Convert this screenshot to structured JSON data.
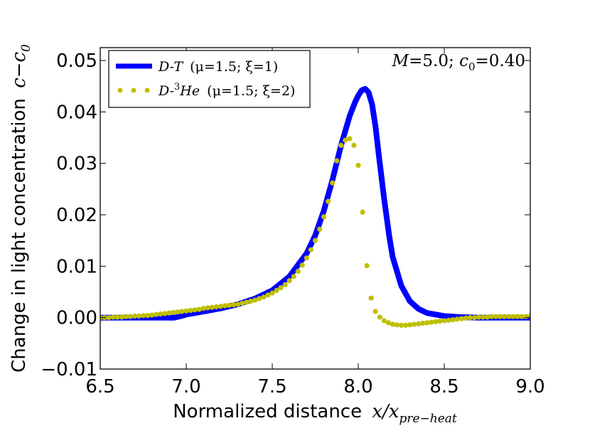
{
  "chart_data": {
    "type": "line",
    "title": "",
    "xlabel": "Normalized distance x/x_pre-heat",
    "ylabel": "Change in light concentration c−c_0",
    "xlim": [
      6.5,
      9.0
    ],
    "ylim": [
      -0.01,
      0.0525
    ],
    "grid": false,
    "legend_position": "top-left",
    "x_ticks": [
      6.5,
      7.0,
      7.5,
      8.0,
      8.5,
      9.0
    ],
    "x_tick_labels": [
      "6.5",
      "7.0",
      "7.5",
      "8.0",
      "8.5",
      "9.0"
    ],
    "y_ticks": [
      -0.01,
      0.0,
      0.01,
      0.02,
      0.03,
      0.04,
      0.05
    ],
    "y_tick_labels": [
      "−0.01",
      "0.00",
      "0.01",
      "0.02",
      "0.03",
      "0.04",
      "0.05"
    ],
    "annotation": "M=5.0; c0 =0.40",
    "series": [
      {
        "name": "D-T (μ=1.5; ξ=1)",
        "style": "line",
        "color": "#0000ff",
        "x": [
          6.5,
          6.8,
          6.9,
          6.93,
          6.97,
          7.0,
          7.1,
          7.2,
          7.3,
          7.4,
          7.5,
          7.6,
          7.7,
          7.75,
          7.8,
          7.85,
          7.9,
          7.95,
          7.98,
          8.0,
          8.02,
          8.04,
          8.06,
          8.08,
          8.1,
          8.12,
          8.15,
          8.18,
          8.2,
          8.25,
          8.3,
          8.35,
          8.4,
          8.5,
          8.6,
          8.7,
          9.0
        ],
        "y": [
          0.0,
          0.0,
          0.0,
          0.0,
          0.0003,
          0.0006,
          0.0012,
          0.0018,
          0.0026,
          0.0037,
          0.0053,
          0.008,
          0.0125,
          0.016,
          0.0208,
          0.0268,
          0.0335,
          0.0392,
          0.0418,
          0.0432,
          0.0442,
          0.0445,
          0.0438,
          0.0415,
          0.0372,
          0.0315,
          0.0232,
          0.0158,
          0.0118,
          0.0062,
          0.0032,
          0.0017,
          0.0009,
          0.0003,
          0.0001,
          0.0,
          0.0
        ]
      },
      {
        "name": "D-3He (μ=1.5; ξ=2)",
        "style": "dots",
        "color": "#bfbf00",
        "x": [
          6.5,
          6.525,
          6.55,
          6.575,
          6.6,
          6.625,
          6.65,
          6.675,
          6.7,
          6.725,
          6.75,
          6.775,
          6.8,
          6.825,
          6.85,
          6.875,
          6.9,
          6.925,
          6.95,
          6.975,
          7.0,
          7.025,
          7.05,
          7.075,
          7.1,
          7.125,
          7.15,
          7.175,
          7.2,
          7.225,
          7.25,
          7.275,
          7.3,
          7.325,
          7.35,
          7.375,
          7.4,
          7.425,
          7.45,
          7.475,
          7.5,
          7.525,
          7.55,
          7.575,
          7.6,
          7.625,
          7.65,
          7.675,
          7.7,
          7.725,
          7.75,
          7.775,
          7.8,
          7.825,
          7.85,
          7.875,
          7.9,
          7.925,
          7.95,
          7.975,
          8.0,
          8.025,
          8.05,
          8.075,
          8.1,
          8.125,
          8.15,
          8.175,
          8.2,
          8.225,
          8.25,
          8.275,
          8.3,
          8.325,
          8.35,
          8.375,
          8.4,
          8.425,
          8.45,
          8.475,
          8.5,
          8.525,
          8.55,
          8.575,
          8.6,
          8.625,
          8.65,
          8.675,
          8.7,
          8.725,
          8.75,
          8.775,
          8.8,
          8.825,
          8.85,
          8.875,
          8.9,
          8.925,
          8.95,
          8.975,
          9.0
        ],
        "y": [
          0.0,
          0.0,
          0.0,
          0.0001,
          0.0001,
          0.0001,
          0.0002,
          0.0002,
          0.0003,
          0.0003,
          0.0004,
          0.0004,
          0.0005,
          0.0006,
          0.0007,
          0.0008,
          0.0009,
          0.001,
          0.0011,
          0.0012,
          0.0013,
          0.0014,
          0.0015,
          0.0016,
          0.0018,
          0.0019,
          0.002,
          0.0021,
          0.0022,
          0.0023,
          0.0024,
          0.0025,
          0.0026,
          0.0028,
          0.003,
          0.0032,
          0.0034,
          0.0037,
          0.004,
          0.0044,
          0.0048,
          0.0053,
          0.0058,
          0.0064,
          0.0072,
          0.008,
          0.009,
          0.0102,
          0.0116,
          0.0132,
          0.015,
          0.0172,
          0.0196,
          0.0226,
          0.0262,
          0.0305,
          0.0335,
          0.0345,
          0.0348,
          0.0335,
          0.0296,
          0.0205,
          0.0101,
          0.0038,
          0.0012,
          0.0001,
          -0.0006,
          -0.001,
          -0.0013,
          -0.0014,
          -0.0015,
          -0.0015,
          -0.0014,
          -0.0013,
          -0.0012,
          -0.0011,
          -0.001,
          -0.0009,
          -0.0008,
          -0.0007,
          -0.0006,
          -0.0005,
          -0.0004,
          -0.0003,
          -0.0002,
          -0.0001,
          0.0,
          0.0,
          0.0001,
          0.0001,
          0.0001,
          0.0002,
          0.0002,
          0.0002,
          0.0002,
          0.0002,
          0.0002,
          0.0002,
          0.0002,
          0.0002,
          0.0003
        ]
      }
    ]
  },
  "legend": {
    "dt_prefix": "D-T",
    "dt_params": "(μ=1.5; ξ=1)",
    "dhe_prefix": "D-",
    "dhe_sup": "3",
    "dhe_he": "He",
    "dhe_params": "(μ=1.5; ξ=2)"
  },
  "axis_text": {
    "xlabel_main": "Normalized distance",
    "xlabel_math": "x/x",
    "xlabel_sub": "pre−heat",
    "ylabel_main": "Change in light concentration",
    "ylabel_math": "c−c",
    "ylabel_sub": "0"
  },
  "anno": {
    "m_label": "M",
    "m_value": "=5.0; ",
    "c_label": "c",
    "c_sub": "0",
    "c_value": "=0.40"
  }
}
